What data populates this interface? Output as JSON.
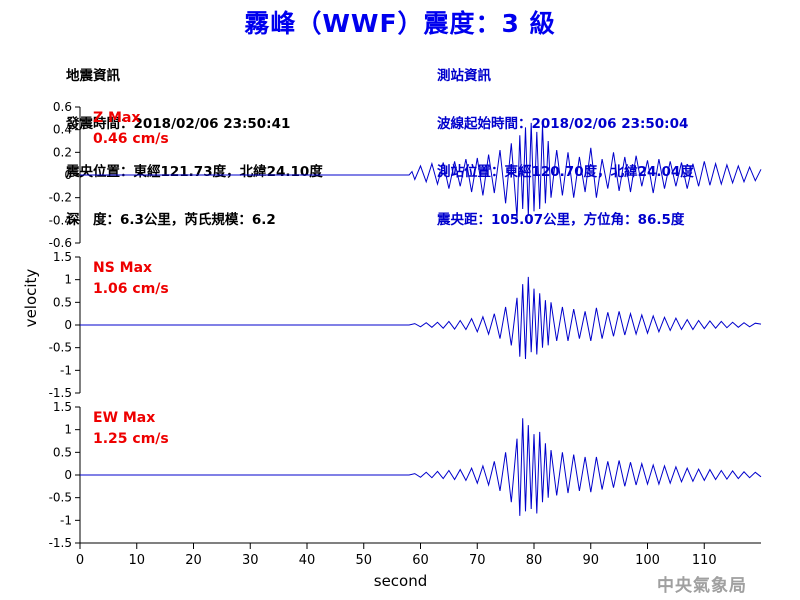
{
  "title": "霧峰（WWF）震度：3 級",
  "event_info": {
    "heading": "地震資訊",
    "origin_time": "發震時間：2018/02/06 23:50:41",
    "epicenter": "震央位置：東經121.73度，北緯24.10度",
    "depth_magnitude": "深　度：6.3公里，芮氏規模：6.2"
  },
  "station_info": {
    "heading": "測站資訊",
    "wave_start": "波線起始時間：2018/02/06 23:50:04",
    "station_location": "測站位置：東經120.70度，北緯24.04度",
    "distance_azimuth": "震央距：105.07公里，方位角：86.5度"
  },
  "agency": "中央氣象局",
  "colors": {
    "title": "#0000ee",
    "trace": "#0000cc",
    "max_label": "#ee0000",
    "axis": "#000000"
  },
  "chart_data": {
    "type": "line",
    "xlabel": "second",
    "ylabel": "velocity",
    "xlim": [
      0,
      120
    ],
    "xticks": [
      0,
      10,
      20,
      30,
      40,
      50,
      60,
      70,
      80,
      90,
      100,
      110
    ],
    "grid": false,
    "series": [
      {
        "name": "Z Max",
        "max_label": "Z Max",
        "max_value": "0.46 cm/s",
        "ylim": [
          -0.6,
          0.6
        ],
        "yticks": [
          -0.6,
          -0.4,
          -0.2,
          0,
          0.2,
          0.4,
          0.6
        ],
        "ytick_labels": [
          "-0.6",
          "-0.4",
          "-0.2",
          "0",
          "0.2",
          "0.4",
          "0.6"
        ],
        "x": [
          0,
          58,
          58.5,
          59,
          60,
          61,
          62,
          63,
          64,
          65,
          66,
          67,
          68,
          69,
          70,
          71,
          72,
          73,
          74,
          75,
          76,
          77,
          77.5,
          78,
          78.5,
          79,
          79.5,
          80,
          80.5,
          81,
          81.5,
          82,
          82.5,
          83,
          84,
          85,
          86,
          87,
          88,
          89,
          90,
          91,
          92,
          93,
          94,
          95,
          96,
          97,
          98,
          99,
          100,
          101,
          102,
          103,
          104,
          105,
          106,
          107,
          108,
          109,
          110,
          111,
          112,
          113,
          114,
          115,
          116,
          117,
          118,
          119,
          120
        ],
        "values": [
          0,
          0,
          0.03,
          -0.04,
          0.08,
          -0.06,
          0.1,
          -0.08,
          0.11,
          -0.12,
          0.12,
          -0.1,
          0.14,
          -0.15,
          0.15,
          -0.18,
          0.18,
          -0.16,
          0.22,
          -0.25,
          0.28,
          -0.38,
          0.35,
          -0.3,
          0.42,
          -0.36,
          0.46,
          -0.32,
          0.38,
          -0.3,
          0.44,
          -0.25,
          0.3,
          -0.2,
          0.22,
          -0.18,
          0.2,
          -0.2,
          0.16,
          -0.15,
          0.24,
          -0.2,
          0.14,
          -0.12,
          0.2,
          -0.14,
          0.16,
          -0.15,
          0.17,
          -0.1,
          0.13,
          -0.16,
          0.14,
          -0.12,
          0.12,
          -0.1,
          0.11,
          -0.12,
          0.1,
          -0.1,
          0.12,
          -0.09,
          0.1,
          -0.08,
          0.09,
          -0.07,
          0.08,
          -0.06,
          0.07,
          -0.05,
          0.05
        ]
      },
      {
        "name": "NS Max",
        "max_label": "NS Max",
        "max_value": "1.06 cm/s",
        "ylim": [
          -1.5,
          1.5
        ],
        "yticks": [
          -1.5,
          -1,
          -0.5,
          0,
          0.5,
          1,
          1.5
        ],
        "ytick_labels": [
          "-1.5",
          "-1",
          "-0.5",
          "0",
          "0.5",
          "1",
          "1.5"
        ],
        "x": [
          0,
          58,
          59,
          60,
          61,
          62,
          63,
          64,
          65,
          66,
          67,
          68,
          69,
          70,
          71,
          72,
          73,
          74,
          75,
          76,
          77,
          77.5,
          78,
          78.5,
          79,
          79.5,
          80,
          80.5,
          81,
          81.5,
          82,
          82.5,
          83,
          84,
          85,
          86,
          87,
          88,
          89,
          90,
          91,
          92,
          93,
          94,
          95,
          96,
          97,
          98,
          99,
          100,
          101,
          102,
          103,
          104,
          105,
          106,
          107,
          108,
          109,
          110,
          111,
          112,
          113,
          114,
          115,
          116,
          117,
          118,
          119,
          120
        ],
        "values": [
          0,
          0,
          0.03,
          -0.04,
          0.05,
          -0.05,
          0.06,
          -0.07,
          0.08,
          -0.09,
          0.1,
          -0.1,
          0.14,
          -0.15,
          0.18,
          -0.2,
          0.25,
          -0.3,
          0.4,
          -0.45,
          0.6,
          -0.7,
          0.9,
          -0.75,
          1.06,
          -0.6,
          0.8,
          -0.65,
          0.7,
          -0.5,
          0.55,
          -0.45,
          0.5,
          -0.35,
          0.4,
          -0.35,
          0.35,
          -0.3,
          0.3,
          -0.35,
          0.38,
          -0.3,
          0.28,
          -0.25,
          0.3,
          -0.22,
          0.25,
          -0.2,
          0.22,
          -0.18,
          0.2,
          -0.15,
          0.17,
          -0.12,
          0.15,
          -0.1,
          0.12,
          -0.1,
          0.1,
          -0.08,
          0.09,
          -0.07,
          0.08,
          -0.06,
          0.06,
          -0.05,
          0.05,
          -0.04,
          0.04,
          0.02
        ]
      },
      {
        "name": "EW Max",
        "max_label": "EW Max",
        "max_value": "1.25 cm/s",
        "ylim": [
          -1.5,
          1.5
        ],
        "yticks": [
          -1.5,
          -1,
          -0.5,
          0,
          0.5,
          1,
          1.5
        ],
        "ytick_labels": [
          "-1.5",
          "-1",
          "-0.5",
          "0",
          "0.5",
          "1",
          "1.5"
        ],
        "x": [
          0,
          58,
          59,
          60,
          61,
          62,
          63,
          64,
          65,
          66,
          67,
          68,
          69,
          70,
          71,
          72,
          73,
          74,
          75,
          76,
          77,
          77.5,
          78,
          78.5,
          79,
          79.5,
          80,
          80.5,
          81,
          81.5,
          82,
          82.5,
          83,
          84,
          85,
          86,
          87,
          88,
          89,
          90,
          91,
          92,
          93,
          94,
          95,
          96,
          97,
          98,
          99,
          100,
          101,
          102,
          103,
          104,
          105,
          106,
          107,
          108,
          109,
          110,
          111,
          112,
          113,
          114,
          115,
          116,
          117,
          118,
          119,
          120
        ],
        "values": [
          0,
          0,
          0.03,
          -0.05,
          0.06,
          -0.06,
          0.08,
          -0.08,
          0.1,
          -0.1,
          0.12,
          -0.12,
          0.15,
          -0.18,
          0.2,
          -0.22,
          0.3,
          -0.35,
          0.5,
          -0.6,
          0.8,
          -0.9,
          1.25,
          -0.8,
          1.1,
          -0.75,
          0.9,
          -0.85,
          0.95,
          -0.6,
          0.7,
          -0.5,
          0.55,
          -0.45,
          0.5,
          -0.4,
          0.45,
          -0.35,
          0.4,
          -0.38,
          0.4,
          -0.32,
          0.3,
          -0.28,
          0.32,
          -0.25,
          0.28,
          -0.22,
          0.25,
          -0.2,
          0.22,
          -0.2,
          0.2,
          -0.18,
          0.18,
          -0.15,
          0.15,
          -0.14,
          0.13,
          -0.12,
          0.12,
          -0.1,
          0.1,
          -0.09,
          0.09,
          -0.08,
          0.07,
          -0.06,
          0.06,
          -0.04
        ]
      }
    ]
  }
}
